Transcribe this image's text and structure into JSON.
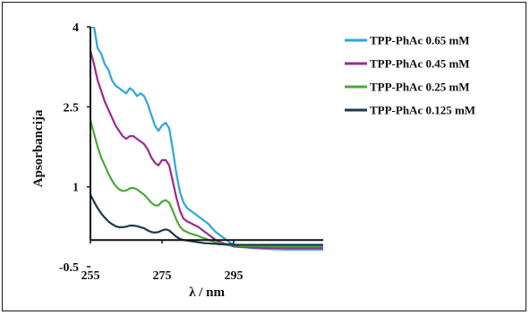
{
  "chart_data": {
    "type": "line",
    "title": "",
    "xlabel": "λ / nm",
    "ylabel": "Apsorbancija",
    "xlim": [
      255,
      320
    ],
    "ylim": [
      -0.5,
      4
    ],
    "x_ticks": [
      255,
      275,
      295
    ],
    "y_ticks": [
      -0.5,
      1,
      2.5,
      4
    ],
    "x_tick_labels": [
      "255",
      "275",
      "295"
    ],
    "y_tick_labels": [
      "-0.5",
      "1",
      "2.5",
      "4"
    ],
    "grid": false,
    "legend_position": "right",
    "series": [
      {
        "name": "TPP-PhAc 0.65 mM",
        "color": "#29a8dc",
        "x": [
          255,
          256,
          257,
          258,
          259,
          260,
          261,
          262,
          263,
          264,
          265,
          266,
          267,
          268,
          269,
          270,
          271,
          272,
          273,
          274,
          275,
          276,
          277,
          278,
          279,
          280,
          281,
          282,
          283,
          284,
          285,
          286,
          287,
          288,
          289,
          290,
          291,
          292,
          293,
          294,
          295,
          297,
          300,
          305,
          310,
          315,
          320
        ],
        "y": [
          4.0,
          4.0,
          3.6,
          3.5,
          3.3,
          3.2,
          3.0,
          2.9,
          2.85,
          2.8,
          2.75,
          2.85,
          2.8,
          2.7,
          2.75,
          2.7,
          2.55,
          2.35,
          2.15,
          2.05,
          2.15,
          2.2,
          2.1,
          1.7,
          1.25,
          0.9,
          0.7,
          0.6,
          0.55,
          0.5,
          0.45,
          0.4,
          0.35,
          0.3,
          0.22,
          0.15,
          0.1,
          0.05,
          0.0,
          -0.05,
          -0.08,
          -0.12,
          -0.15,
          -0.17,
          -0.18,
          -0.18,
          -0.18
        ]
      },
      {
        "name": "TPP-PhAc 0.45 mM",
        "color": "#a0288c",
        "x": [
          255,
          256,
          257,
          258,
          259,
          260,
          261,
          262,
          263,
          264,
          265,
          266,
          267,
          268,
          269,
          270,
          271,
          272,
          273,
          274,
          275,
          276,
          277,
          278,
          279,
          280,
          281,
          282,
          283,
          284,
          285,
          286,
          287,
          288,
          289,
          290,
          291,
          292,
          293,
          294,
          295,
          297,
          300,
          305,
          310,
          315,
          320
        ],
        "y": [
          3.55,
          3.3,
          3.0,
          2.8,
          2.6,
          2.45,
          2.3,
          2.15,
          2.05,
          1.95,
          1.9,
          1.95,
          1.95,
          1.9,
          1.85,
          1.8,
          1.7,
          1.55,
          1.45,
          1.4,
          1.5,
          1.5,
          1.4,
          1.1,
          0.8,
          0.55,
          0.4,
          0.35,
          0.32,
          0.28,
          0.25,
          0.2,
          0.15,
          0.1,
          0.05,
          0.0,
          -0.03,
          -0.06,
          -0.08,
          -0.1,
          -0.12,
          -0.13,
          -0.14,
          -0.15,
          -0.15,
          -0.15,
          -0.15
        ]
      },
      {
        "name": "TPP-PhAc 0.25 mM",
        "color": "#4aa83a",
        "x": [
          255,
          256,
          257,
          258,
          259,
          260,
          261,
          262,
          263,
          264,
          265,
          266,
          267,
          268,
          269,
          270,
          271,
          272,
          273,
          274,
          275,
          276,
          277,
          278,
          279,
          280,
          281,
          282,
          283,
          284,
          285,
          286,
          287,
          288,
          289,
          290,
          291,
          292,
          293,
          294,
          295,
          297,
          300,
          305,
          310,
          315,
          320
        ],
        "y": [
          2.25,
          2.0,
          1.75,
          1.55,
          1.4,
          1.25,
          1.12,
          1.02,
          0.95,
          0.92,
          0.93,
          0.97,
          0.98,
          0.95,
          0.9,
          0.85,
          0.78,
          0.7,
          0.65,
          0.65,
          0.72,
          0.75,
          0.7,
          0.55,
          0.38,
          0.25,
          0.18,
          0.15,
          0.12,
          0.1,
          0.08,
          0.05,
          0.03,
          0.0,
          -0.02,
          -0.05,
          -0.06,
          -0.08,
          -0.09,
          -0.1,
          -0.1,
          -0.11,
          -0.11,
          -0.12,
          -0.12,
          -0.12,
          -0.12
        ]
      },
      {
        "name": "TPP-PhAc 0.125 mM",
        "color": "#1b3a4f",
        "x": [
          255,
          256,
          257,
          258,
          259,
          260,
          261,
          262,
          263,
          264,
          265,
          266,
          267,
          268,
          269,
          270,
          271,
          272,
          273,
          274,
          275,
          276,
          277,
          278,
          279,
          280,
          281,
          282,
          283,
          284,
          285,
          286,
          287,
          288,
          289,
          290,
          291,
          292,
          293,
          294,
          295,
          297,
          300,
          305,
          310,
          315,
          320
        ],
        "y": [
          0.85,
          0.72,
          0.6,
          0.5,
          0.42,
          0.35,
          0.3,
          0.26,
          0.24,
          0.24,
          0.25,
          0.27,
          0.27,
          0.26,
          0.24,
          0.22,
          0.18,
          0.15,
          0.14,
          0.15,
          0.18,
          0.2,
          0.18,
          0.12,
          0.06,
          0.02,
          0.0,
          -0.01,
          -0.02,
          -0.03,
          -0.04,
          -0.05,
          -0.06,
          -0.06,
          -0.07,
          -0.07,
          -0.08,
          -0.08,
          -0.08,
          -0.08,
          -0.09,
          -0.09,
          -0.09,
          -0.09,
          -0.09,
          -0.09,
          -0.09
        ]
      }
    ]
  }
}
